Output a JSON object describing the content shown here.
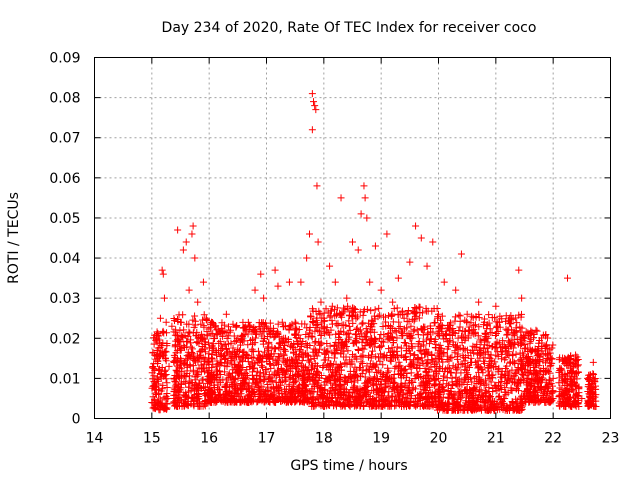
{
  "chart_data": {
    "type": "scatter",
    "title": "Day 234 of 2020, Rate Of TEC Index for receiver coco",
    "xlabel": "GPS time / hours",
    "ylabel": "ROTI / TECUs",
    "xlim": [
      14,
      23
    ],
    "ylim": [
      0,
      0.09
    ],
    "xticks": [
      14,
      15,
      16,
      17,
      18,
      19,
      20,
      21,
      22,
      23
    ],
    "yticks": [
      0,
      0.01,
      0.02,
      0.03,
      0.04,
      0.05,
      0.06,
      0.07,
      0.08,
      0.09
    ],
    "xtick_labels": [
      "14",
      "15",
      "16",
      "17",
      "18",
      "19",
      "20",
      "21",
      "22",
      "23"
    ],
    "ytick_labels": [
      "0",
      "0.01",
      "0.02",
      "0.03",
      "0.04",
      "0.05",
      "0.06",
      "0.07",
      "0.08",
      "0.09"
    ],
    "grid": true,
    "marker": "+",
    "marker_color": "#ff0000",
    "series": [
      {
        "points": [
          [
            15.0,
            0.004
          ],
          [
            15.02,
            0.008
          ],
          [
            15.05,
            0.012
          ],
          [
            15.08,
            0.02
          ],
          [
            15.1,
            0.016
          ],
          [
            15.12,
            0.006
          ],
          [
            15.15,
            0.025
          ],
          [
            15.18,
            0.037
          ],
          [
            15.2,
            0.036
          ],
          [
            15.22,
            0.03
          ],
          [
            15.25,
            0.024
          ],
          [
            15.28,
            0.005
          ],
          [
            15.3,
            0.013
          ],
          [
            15.35,
            0.023
          ],
          [
            15.4,
            0.005
          ],
          [
            15.45,
            0.047
          ],
          [
            15.5,
            0.015
          ],
          [
            15.55,
            0.042
          ],
          [
            15.6,
            0.044
          ],
          [
            15.65,
            0.032
          ],
          [
            15.7,
            0.046
          ],
          [
            15.72,
            0.048
          ],
          [
            15.75,
            0.04
          ],
          [
            15.8,
            0.029
          ],
          [
            15.85,
            0.02
          ],
          [
            15.9,
            0.034
          ],
          [
            15.95,
            0.025
          ],
          [
            16.0,
            0.012
          ],
          [
            16.05,
            0.018
          ],
          [
            16.1,
            0.023
          ],
          [
            16.2,
            0.009
          ],
          [
            16.3,
            0.026
          ],
          [
            16.4,
            0.015
          ],
          [
            16.5,
            0.02
          ],
          [
            16.6,
            0.01
          ],
          [
            16.7,
            0.023
          ],
          [
            16.8,
            0.032
          ],
          [
            16.9,
            0.036
          ],
          [
            16.95,
            0.03
          ],
          [
            17.0,
            0.015
          ],
          [
            17.1,
            0.021
          ],
          [
            17.15,
            0.037
          ],
          [
            17.2,
            0.033
          ],
          [
            17.3,
            0.02
          ],
          [
            17.4,
            0.034
          ],
          [
            17.5,
            0.024
          ],
          [
            17.6,
            0.034
          ],
          [
            17.7,
            0.04
          ],
          [
            17.75,
            0.046
          ],
          [
            17.8,
            0.081
          ],
          [
            17.82,
            0.079
          ],
          [
            17.84,
            0.078
          ],
          [
            17.86,
            0.077
          ],
          [
            17.8,
            0.072
          ],
          [
            17.88,
            0.058
          ],
          [
            17.9,
            0.044
          ],
          [
            17.95,
            0.029
          ],
          [
            18.0,
            0.025
          ],
          [
            18.1,
            0.038
          ],
          [
            18.2,
            0.034
          ],
          [
            18.3,
            0.055
          ],
          [
            18.4,
            0.03
          ],
          [
            18.5,
            0.044
          ],
          [
            18.6,
            0.042
          ],
          [
            18.65,
            0.051
          ],
          [
            18.7,
            0.058
          ],
          [
            18.72,
            0.055
          ],
          [
            18.75,
            0.05
          ],
          [
            18.8,
            0.034
          ],
          [
            18.9,
            0.043
          ],
          [
            19.0,
            0.032
          ],
          [
            19.1,
            0.046
          ],
          [
            19.2,
            0.029
          ],
          [
            19.3,
            0.035
          ],
          [
            19.4,
            0.025
          ],
          [
            19.5,
            0.039
          ],
          [
            19.6,
            0.048
          ],
          [
            19.7,
            0.045
          ],
          [
            19.8,
            0.038
          ],
          [
            19.9,
            0.044
          ],
          [
            20.0,
            0.026
          ],
          [
            20.1,
            0.034
          ],
          [
            20.2,
            0.021
          ],
          [
            20.3,
            0.032
          ],
          [
            20.4,
            0.041
          ],
          [
            20.5,
            0.026
          ],
          [
            20.6,
            0.018
          ],
          [
            20.7,
            0.029
          ],
          [
            20.8,
            0.024
          ],
          [
            20.9,
            0.015
          ],
          [
            21.0,
            0.028
          ],
          [
            21.1,
            0.016
          ],
          [
            21.2,
            0.022
          ],
          [
            21.3,
            0.025
          ],
          [
            21.4,
            0.037
          ],
          [
            21.45,
            0.03
          ],
          [
            21.5,
            0.02
          ],
          [
            21.6,
            0.012
          ],
          [
            21.7,
            0.022
          ],
          [
            21.8,
            0.018
          ],
          [
            21.9,
            0.015
          ],
          [
            22.0,
            0.01
          ],
          [
            22.2,
            0.015
          ],
          [
            22.25,
            0.035
          ],
          [
            22.3,
            0.012
          ],
          [
            22.4,
            0.008
          ],
          [
            22.5,
            0.005
          ],
          [
            22.6,
            0.01
          ],
          [
            22.7,
            0.014
          ]
        ],
        "dense_segments": [
          [
            15.0,
            15.27,
            0.002,
            0.022
          ],
          [
            15.38,
            15.98,
            0.003,
            0.026
          ],
          [
            15.98,
            17.75,
            0.004,
            0.024
          ],
          [
            17.75,
            19.98,
            0.003,
            0.028
          ],
          [
            19.98,
            21.48,
            0.002,
            0.026
          ],
          [
            21.48,
            22.0,
            0.004,
            0.022
          ],
          [
            22.1,
            22.45,
            0.003,
            0.016
          ],
          [
            22.6,
            22.75,
            0.003,
            0.012
          ]
        ]
      }
    ]
  }
}
